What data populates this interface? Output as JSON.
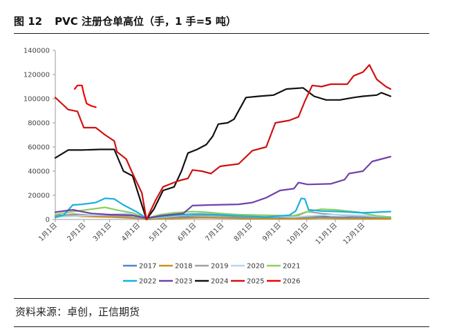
{
  "figure": {
    "number": "图 12",
    "title": "PVC 注册仓单高位（手，1 手=5 吨）",
    "source": "资料来源：卓创，正信期货"
  },
  "chart_data": {
    "type": "line",
    "title": "PVC 注册仓单高位（手，1 手=5 吨）",
    "xlabel": "",
    "ylabel": "",
    "ylim": [
      0,
      140000
    ],
    "yticks": [
      "0",
      "20000",
      "40000",
      "60000",
      "80000",
      "100000",
      "120000",
      "140000"
    ],
    "xticks": [
      "1月1日",
      "2月1日",
      "3月1日",
      "4月1日",
      "5月1日",
      "6月1日",
      "7月1日",
      "8月1日",
      "9月1日",
      "10月1日",
      "11月1日",
      "12月1日"
    ],
    "x_unit": "day_of_year",
    "legend_position": "bottom",
    "series": [
      {
        "name": "2017",
        "color": "#4a86c8",
        "points": [
          [
            1,
            3500
          ],
          [
            30,
            3000
          ],
          [
            60,
            2500
          ],
          [
            90,
            1500
          ],
          [
            100,
            500
          ],
          [
            120,
            1500
          ],
          [
            150,
            2000
          ],
          [
            180,
            1500
          ],
          [
            210,
            1200
          ],
          [
            240,
            1000
          ],
          [
            270,
            2000
          ],
          [
            290,
            2500
          ],
          [
            300,
            2000
          ],
          [
            330,
            1500
          ],
          [
            365,
            1000
          ]
        ]
      },
      {
        "name": "2018",
        "color": "#c8901e",
        "points": [
          [
            1,
            1500
          ],
          [
            10,
            3500
          ],
          [
            30,
            2500
          ],
          [
            60,
            2000
          ],
          [
            90,
            1000
          ],
          [
            100,
            0
          ],
          [
            130,
            1000
          ],
          [
            160,
            1500
          ],
          [
            200,
            1000
          ],
          [
            240,
            500
          ],
          [
            270,
            800
          ],
          [
            290,
            1200
          ],
          [
            320,
            800
          ],
          [
            365,
            500
          ]
        ]
      },
      {
        "name": "2019",
        "color": "#a0a0a0",
        "points": [
          [
            1,
            2500
          ],
          [
            20,
            4500
          ],
          [
            40,
            3500
          ],
          [
            60,
            3000
          ],
          [
            80,
            2500
          ],
          [
            100,
            500
          ],
          [
            130,
            2500
          ],
          [
            150,
            3500
          ],
          [
            180,
            3000
          ],
          [
            220,
            2000
          ],
          [
            250,
            2500
          ],
          [
            265,
            3500
          ],
          [
            275,
            6500
          ],
          [
            290,
            5000
          ],
          [
            320,
            3000
          ],
          [
            365,
            2000
          ]
        ]
      },
      {
        "name": "2020",
        "color": "#b8d4ee",
        "points": [
          [
            1,
            2000
          ],
          [
            30,
            3000
          ],
          [
            60,
            4000
          ],
          [
            80,
            5000
          ],
          [
            100,
            1000
          ],
          [
            130,
            3000
          ],
          [
            160,
            5000
          ],
          [
            180,
            4000
          ],
          [
            220,
            3000
          ],
          [
            260,
            2000
          ],
          [
            280,
            3000
          ],
          [
            300,
            4000
          ],
          [
            330,
            3500
          ],
          [
            365,
            2000
          ]
        ]
      },
      {
        "name": "2021",
        "color": "#8ccf5c",
        "points": [
          [
            1,
            4000
          ],
          [
            20,
            6500
          ],
          [
            40,
            8500
          ],
          [
            55,
            10000
          ],
          [
            70,
            7500
          ],
          [
            85,
            5500
          ],
          [
            100,
            1000
          ],
          [
            115,
            4000
          ],
          [
            130,
            5500
          ],
          [
            150,
            6500
          ],
          [
            165,
            6000
          ],
          [
            180,
            5000
          ],
          [
            200,
            4000
          ],
          [
            230,
            3500
          ],
          [
            260,
            3000
          ],
          [
            275,
            6500
          ],
          [
            290,
            8500
          ],
          [
            305,
            8000
          ],
          [
            330,
            6000
          ],
          [
            350,
            3000
          ],
          [
            365,
            2000
          ]
        ]
      },
      {
        "name": "2022",
        "color": "#18b0e0",
        "points": [
          [
            1,
            2000
          ],
          [
            10,
            3500
          ],
          [
            20,
            12000
          ],
          [
            30,
            12500
          ],
          [
            45,
            14000
          ],
          [
            55,
            17500
          ],
          [
            65,
            17000
          ],
          [
            75,
            12000
          ],
          [
            90,
            6000
          ],
          [
            100,
            1000
          ],
          [
            110,
            2000
          ],
          [
            130,
            3500
          ],
          [
            150,
            4500
          ],
          [
            175,
            4000
          ],
          [
            200,
            3000
          ],
          [
            230,
            2000
          ],
          [
            255,
            3500
          ],
          [
            262,
            7000
          ],
          [
            268,
            17500
          ],
          [
            272,
            17000
          ],
          [
            276,
            8000
          ],
          [
            290,
            7000
          ],
          [
            310,
            6500
          ],
          [
            335,
            5500
          ],
          [
            350,
            6000
          ],
          [
            365,
            6500
          ]
        ]
      },
      {
        "name": "2023",
        "color": "#7040a8",
        "points": [
          [
            1,
            6000
          ],
          [
            20,
            8000
          ],
          [
            40,
            5000
          ],
          [
            60,
            4000
          ],
          [
            85,
            3500
          ],
          [
            100,
            1000
          ],
          [
            115,
            3000
          ],
          [
            140,
            5000
          ],
          [
            150,
            11500
          ],
          [
            170,
            12000
          ],
          [
            200,
            12500
          ],
          [
            215,
            14000
          ],
          [
            230,
            18000
          ],
          [
            245,
            24000
          ],
          [
            260,
            25500
          ],
          [
            265,
            30500
          ],
          [
            275,
            29000
          ],
          [
            300,
            29500
          ],
          [
            315,
            33000
          ],
          [
            320,
            38000
          ],
          [
            335,
            40000
          ],
          [
            345,
            48000
          ],
          [
            355,
            50000
          ],
          [
            365,
            52000
          ]
        ]
      },
      {
        "name": "2024",
        "color": "#101010",
        "points": [
          [
            1,
            51000
          ],
          [
            15,
            57500
          ],
          [
            30,
            57500
          ],
          [
            50,
            58000
          ],
          [
            65,
            58000
          ],
          [
            75,
            40000
          ],
          [
            85,
            36000
          ],
          [
            100,
            0
          ],
          [
            108,
            8500
          ],
          [
            118,
            24000
          ],
          [
            130,
            27000
          ],
          [
            138,
            40000
          ],
          [
            145,
            55000
          ],
          [
            155,
            58000
          ],
          [
            165,
            62000
          ],
          [
            172,
            69000
          ],
          [
            178,
            79000
          ],
          [
            188,
            80000
          ],
          [
            195,
            83000
          ],
          [
            208,
            101000
          ],
          [
            222,
            102000
          ],
          [
            238,
            103000
          ],
          [
            252,
            108000
          ],
          [
            270,
            109000
          ],
          [
            282,
            102000
          ],
          [
            295,
            99000
          ],
          [
            310,
            99000
          ],
          [
            325,
            101000
          ],
          [
            335,
            102000
          ],
          [
            350,
            103000
          ],
          [
            355,
            105000
          ],
          [
            365,
            102000
          ]
        ]
      },
      {
        "name": "2025",
        "color": "#d01010",
        "points": [
          [
            1,
            101000
          ],
          [
            8,
            96000
          ],
          [
            15,
            91000
          ],
          [
            25,
            89500
          ],
          [
            32,
            76000
          ],
          [
            45,
            76000
          ],
          [
            55,
            70000
          ],
          [
            65,
            65000
          ],
          [
            68,
            56000
          ],
          [
            78,
            50000
          ],
          [
            85,
            38000
          ],
          [
            95,
            22000
          ],
          [
            100,
            0
          ],
          [
            110,
            16000
          ],
          [
            118,
            27000
          ],
          [
            128,
            30000
          ],
          [
            135,
            32000
          ],
          [
            145,
            34000
          ],
          [
            150,
            41000
          ],
          [
            160,
            40000
          ],
          [
            170,
            38000
          ],
          [
            180,
            44000
          ],
          [
            200,
            46000
          ],
          [
            215,
            57000
          ],
          [
            230,
            60000
          ],
          [
            240,
            80000
          ],
          [
            255,
            82000
          ],
          [
            265,
            85000
          ],
          [
            272,
            98000
          ],
          [
            280,
            111000
          ],
          [
            290,
            110000
          ],
          [
            300,
            112000
          ],
          [
            318,
            112000
          ],
          [
            325,
            119000
          ],
          [
            335,
            122000
          ],
          [
            342,
            128000
          ],
          [
            350,
            116000
          ],
          [
            360,
            110000
          ],
          [
            365,
            108000
          ]
        ]
      },
      {
        "name": "2026",
        "color": "#ee0000",
        "points": [
          [
            22,
            108000
          ],
          [
            25,
            111000
          ],
          [
            30,
            111000
          ],
          [
            32,
            104000
          ],
          [
            35,
            96000
          ],
          [
            40,
            94000
          ],
          [
            45,
            93000
          ]
        ]
      }
    ]
  }
}
